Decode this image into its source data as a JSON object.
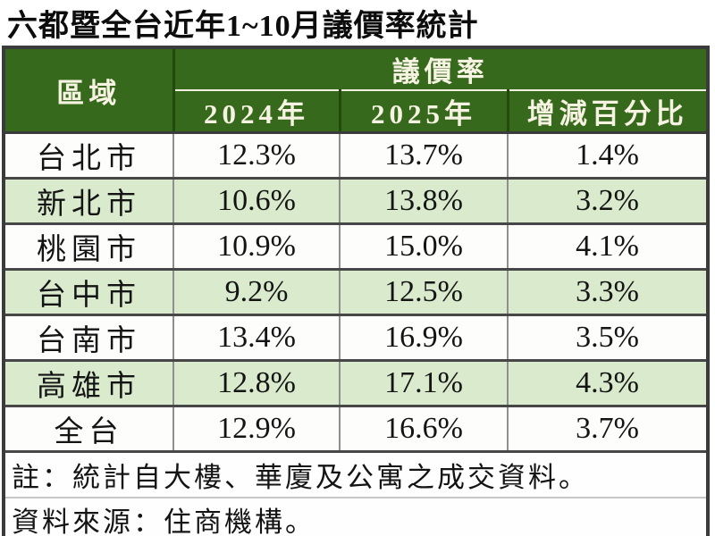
{
  "title": "六都暨全台近年1~10月議價率統計",
  "table": {
    "region_header": "區域",
    "group_header": "議價率",
    "columns": [
      "2024年",
      "2025年",
      "增減百分比"
    ],
    "rows": [
      {
        "region": "台北市",
        "v2024": "12.3%",
        "v2025": "13.7%",
        "diff": "1.4%"
      },
      {
        "region": "新北市",
        "v2024": "10.6%",
        "v2025": "13.8%",
        "diff": "3.2%"
      },
      {
        "region": "桃園市",
        "v2024": "10.9%",
        "v2025": "15.0%",
        "diff": "4.1%"
      },
      {
        "region": "台中市",
        "v2024": "9.2%",
        "v2025": "12.5%",
        "diff": "3.3%"
      },
      {
        "region": "台南市",
        "v2024": "13.4%",
        "v2025": "16.9%",
        "diff": "3.5%"
      },
      {
        "region": "高雄市",
        "v2024": "12.8%",
        "v2025": "17.1%",
        "diff": "4.3%"
      },
      {
        "region": "全台",
        "v2024": "12.9%",
        "v2025": "16.6%",
        "diff": "3.7%"
      }
    ]
  },
  "notes": {
    "note": "註：統計自大樓、華廈及公寓之成交資料。",
    "source": "資料來源：住商機構。"
  },
  "colors": {
    "header_green": "#37691d",
    "header_text_ivory": "#f6f3e2",
    "alt_row_green": "#d9eacd",
    "border_dark": "#3b3b3b",
    "border_gray": "#8f8f8f"
  },
  "chart_data": {
    "type": "table",
    "title": "六都暨全台近年1~10月議價率統計",
    "group_header": "議價率",
    "columns": [
      "區域",
      "2024年",
      "2025年",
      "增減百分比"
    ],
    "categories": [
      "台北市",
      "新北市",
      "桃園市",
      "台中市",
      "台南市",
      "高雄市",
      "全台"
    ],
    "series": [
      {
        "name": "2024年",
        "values": [
          12.3,
          10.6,
          10.9,
          9.2,
          13.4,
          12.8,
          12.9
        ]
      },
      {
        "name": "2025年",
        "values": [
          13.7,
          13.8,
          15.0,
          12.5,
          16.9,
          17.1,
          16.6
        ]
      },
      {
        "name": "增減百分比",
        "values": [
          1.4,
          3.2,
          4.1,
          3.3,
          3.5,
          4.3,
          3.7
        ]
      }
    ],
    "unit": "%",
    "notes": [
      "註：統計自大樓、華廈及公寓之成交資料。",
      "資料來源：住商機構。"
    ]
  }
}
